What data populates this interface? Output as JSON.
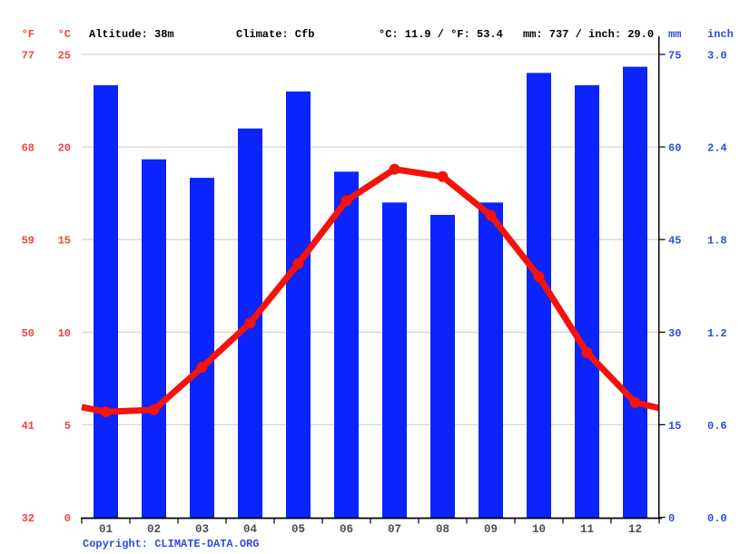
{
  "header": {
    "temp_f_label": "°F",
    "temp_c_label": "°C",
    "altitude": "Altitude: 38m",
    "climate": "Climate: Cfb",
    "avg_temp": "°C: 11.9 / °F: 53.4",
    "precip_total": "mm: 737 / inch: 29.0",
    "mm_label": "mm",
    "inch_label": "inch"
  },
  "footer": {
    "copyright": "Copyright: CLIMATE-DATA.ORG"
  },
  "colors": {
    "bar": "#0b24fb",
    "line": "#f5120b",
    "red_text": "#f4443b",
    "blue_text": "#2e4be4",
    "month_text": "#4d4d4d",
    "grid": "#d5d5d5",
    "axis": "#000000"
  },
  "chart_data": {
    "type": "bar",
    "subtype": "climate-chart (precipitation bars + temperature line)",
    "categories": [
      "01",
      "02",
      "03",
      "04",
      "05",
      "06",
      "07",
      "08",
      "09",
      "10",
      "11",
      "12"
    ],
    "series": [
      {
        "name": "Precipitation (mm)",
        "type": "bar",
        "values": [
          70,
          58,
          55,
          63,
          69,
          56,
          51,
          49,
          51,
          72,
          70,
          73
        ],
        "total_mm": 737,
        "color": "#0b24fb"
      },
      {
        "name": "Temperature (°C)",
        "type": "line",
        "values": [
          5.7,
          5.8,
          8.1,
          10.5,
          13.7,
          17.1,
          18.8,
          18.4,
          16.3,
          13.0,
          8.9,
          6.2
        ],
        "edge_start": 5.95,
        "edge_end": 5.9,
        "mean_c": 11.9,
        "color": "#f5120b"
      }
    ],
    "axes": {
      "left_f_ticks": [
        "77",
        "68",
        "59",
        "50",
        "41",
        "32"
      ],
      "left_c_ticks": [
        "25",
        "20",
        "15",
        "10",
        "5",
        "0"
      ],
      "right_mm_ticks": [
        "75",
        "60",
        "45",
        "30",
        "15",
        "0"
      ],
      "right_inch_ticks": [
        "3.0",
        "2.4",
        "1.8",
        "1.2",
        "0.6",
        "0.0"
      ],
      "temp_ylim_c": [
        0,
        25
      ],
      "precip_ylim_mm": [
        0,
        75
      ],
      "grid": "horizontal"
    },
    "annotations": {
      "altitude": "Altitude: 38m",
      "climate_zone": "Climate: Cfb",
      "avg_temp": "°C: 11.9 / °F: 53.4",
      "total_precip": "mm: 737 / inch: 29.0"
    },
    "legend_position": "none"
  }
}
